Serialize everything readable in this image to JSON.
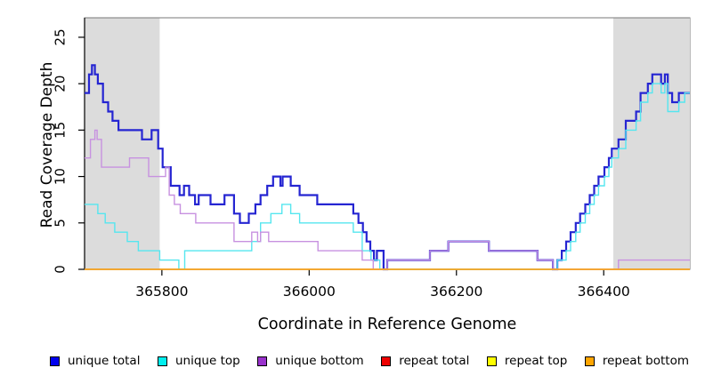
{
  "figure": {
    "xlabel": "Coordinate in Reference Genome",
    "ylabel": "Read Coverage Depth"
  },
  "chart_data": {
    "type": "line",
    "step": true,
    "title": "",
    "xlabel": "Coordinate in Reference Genome",
    "ylabel": "Read Coverage Depth",
    "xlim": [
      365695,
      366517
    ],
    "ylim": [
      0,
      27.1
    ],
    "x_ticks": [
      365800,
      366000,
      366200,
      366400
    ],
    "y_ticks": [
      0,
      5,
      10,
      15,
      20,
      25
    ],
    "grid": false,
    "legend_position": "bottom",
    "box_color": "#777777",
    "axis_color": "#000000",
    "shaded_regions": [
      {
        "from": 365695,
        "to": 365797,
        "color": "#dcdcdc"
      },
      {
        "from": 366413,
        "to": 366517,
        "color": "#dcdcdc"
      }
    ],
    "series": [
      {
        "name": "unique total",
        "legend_color": "#0000ee",
        "line_color": "#2525d2",
        "line_width": 2.2,
        "points": [
          [
            365695,
            19
          ],
          [
            365701,
            21
          ],
          [
            365705,
            22
          ],
          [
            365709,
            21
          ],
          [
            365713,
            20
          ],
          [
            365720,
            18
          ],
          [
            365727,
            17
          ],
          [
            365733,
            16
          ],
          [
            365741,
            15
          ],
          [
            365773,
            14
          ],
          [
            365786,
            15
          ],
          [
            365795,
            13
          ],
          [
            365801,
            11
          ],
          [
            365812,
            9
          ],
          [
            365824,
            8
          ],
          [
            365830,
            9
          ],
          [
            365837,
            8
          ],
          [
            365845,
            7
          ],
          [
            365850,
            8
          ],
          [
            365866,
            7
          ],
          [
            365885,
            8
          ],
          [
            365898,
            6
          ],
          [
            365906,
            5
          ],
          [
            365918,
            6
          ],
          [
            365927,
            7
          ],
          [
            365934,
            8
          ],
          [
            365943,
            9
          ],
          [
            365951,
            10
          ],
          [
            365961,
            9
          ],
          [
            365964,
            10
          ],
          [
            365975,
            9
          ],
          [
            365987,
            8
          ],
          [
            366011,
            7
          ],
          [
            366060,
            6
          ],
          [
            366067,
            5
          ],
          [
            366073,
            4
          ],
          [
            366078,
            3
          ],
          [
            366083,
            2
          ],
          [
            366088,
            1
          ],
          [
            366092,
            2
          ],
          [
            366101,
            0
          ],
          [
            366106,
            1
          ],
          [
            366164,
            2
          ],
          [
            366189,
            3
          ],
          [
            366244,
            2
          ],
          [
            366310,
            1
          ],
          [
            366331,
            0
          ],
          [
            366337,
            1
          ],
          [
            366343,
            2
          ],
          [
            366349,
            3
          ],
          [
            366355,
            4
          ],
          [
            366362,
            5
          ],
          [
            366368,
            6
          ],
          [
            366375,
            7
          ],
          [
            366381,
            8
          ],
          [
            366387,
            9
          ],
          [
            366393,
            10
          ],
          [
            366401,
            11
          ],
          [
            366407,
            12
          ],
          [
            366411,
            13
          ],
          [
            366420,
            14
          ],
          [
            366430,
            16
          ],
          [
            366444,
            17
          ],
          [
            366450,
            19
          ],
          [
            366460,
            20
          ],
          [
            366466,
            21
          ],
          [
            366478,
            20
          ],
          [
            366483,
            21
          ],
          [
            366487,
            19
          ],
          [
            366493,
            18
          ],
          [
            366502,
            19
          ],
          [
            366517,
            19
          ]
        ]
      },
      {
        "name": "unique top",
        "legend_color": "#00eeee",
        "line_color": "#55e6ef",
        "line_width": 1.4,
        "points": [
          [
            365695,
            7
          ],
          [
            365713,
            6
          ],
          [
            365723,
            5
          ],
          [
            365736,
            4
          ],
          [
            365753,
            3
          ],
          [
            365768,
            2
          ],
          [
            365797,
            1
          ],
          [
            365823,
            0
          ],
          [
            365831,
            2
          ],
          [
            365922,
            3
          ],
          [
            365934,
            5
          ],
          [
            365948,
            6
          ],
          [
            365963,
            7
          ],
          [
            365975,
            6
          ],
          [
            365987,
            5
          ],
          [
            366060,
            4
          ],
          [
            366072,
            2
          ],
          [
            366084,
            1
          ],
          [
            366096,
            0
          ],
          [
            366337,
            1
          ],
          [
            366343,
            1
          ],
          [
            366349,
            2
          ],
          [
            366355,
            3
          ],
          [
            366362,
            4
          ],
          [
            366368,
            5
          ],
          [
            366375,
            6
          ],
          [
            366381,
            7
          ],
          [
            366387,
            8
          ],
          [
            366393,
            9
          ],
          [
            366401,
            10
          ],
          [
            366407,
            11
          ],
          [
            366411,
            12
          ],
          [
            366420,
            13
          ],
          [
            366430,
            15
          ],
          [
            366444,
            16
          ],
          [
            366450,
            18
          ],
          [
            366460,
            19
          ],
          [
            366466,
            20
          ],
          [
            366478,
            19
          ],
          [
            366483,
            20
          ],
          [
            366487,
            17
          ],
          [
            366493,
            17
          ],
          [
            366502,
            18
          ],
          [
            366510,
            19
          ],
          [
            366517,
            19
          ]
        ]
      },
      {
        "name": "unique bottom",
        "legend_color": "#9932cc",
        "line_color": "#c791e0",
        "line_width": 1.4,
        "points": [
          [
            365695,
            12
          ],
          [
            365703,
            14
          ],
          [
            365709,
            15
          ],
          [
            365712,
            14
          ],
          [
            365718,
            11
          ],
          [
            365756,
            12
          ],
          [
            365782,
            10
          ],
          [
            365805,
            11
          ],
          [
            365810,
            8
          ],
          [
            365817,
            7
          ],
          [
            365825,
            6
          ],
          [
            365846,
            5
          ],
          [
            365898,
            3
          ],
          [
            365922,
            4
          ],
          [
            365930,
            3
          ],
          [
            365934,
            4
          ],
          [
            365945,
            3
          ],
          [
            366012,
            2
          ],
          [
            366072,
            1
          ],
          [
            366087,
            0
          ],
          [
            366106,
            1
          ],
          [
            366164,
            2
          ],
          [
            366189,
            3
          ],
          [
            366244,
            2
          ],
          [
            366310,
            1
          ],
          [
            366331,
            0
          ],
          [
            366420,
            1
          ],
          [
            366517,
            1
          ]
        ]
      },
      {
        "name": "repeat total",
        "legend_color": "#ee0000",
        "line_color": "#de4156",
        "line_width": 1.2,
        "points": [
          [
            365695,
            0
          ],
          [
            366517,
            0
          ]
        ]
      },
      {
        "name": "repeat top",
        "legend_color": "#ffff00",
        "line_color": "#eded22",
        "line_width": 1.2,
        "points": [
          [
            365695,
            0
          ],
          [
            366517,
            0
          ]
        ]
      },
      {
        "name": "repeat bottom",
        "legend_color": "#ffa500",
        "line_color": "#ffa519",
        "line_width": 1.4,
        "points": [
          [
            365695,
            0
          ],
          [
            366517,
            0
          ]
        ]
      }
    ]
  }
}
